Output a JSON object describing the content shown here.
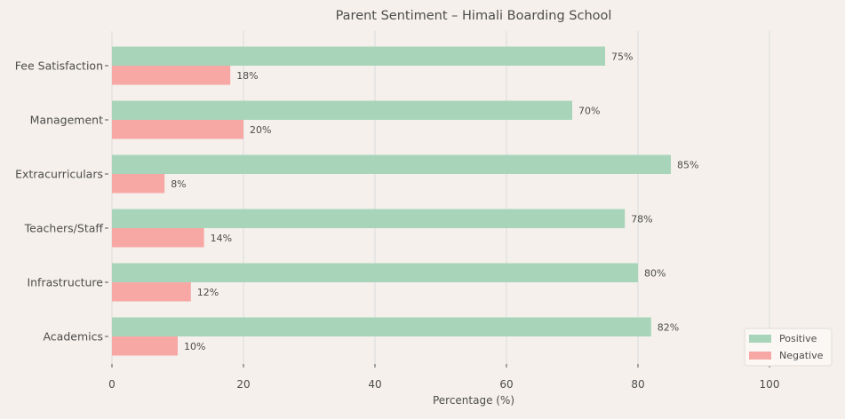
{
  "chart_data": {
    "type": "bar",
    "orientation": "horizontal",
    "title": "Parent Sentiment – Himali Boarding School",
    "xlabel": "Percentage (%)",
    "ylabel": "",
    "xlim": [
      0,
      110
    ],
    "xticks": [
      0,
      20,
      40,
      60,
      80,
      100
    ],
    "grid": "vertical",
    "legend_position": "lower-right",
    "categories": [
      "Academics",
      "Infrastructure",
      "Teachers/Staff",
      "Extracurriculars",
      "Management",
      "Fee Satisfaction"
    ],
    "series": [
      {
        "name": "Positive",
        "color": "#a8d5ba",
        "values": [
          82,
          80,
          78,
          85,
          70,
          75
        ],
        "labels": [
          "82%",
          "80%",
          "78%",
          "85%",
          "70%",
          "75%"
        ]
      },
      {
        "name": "Negative",
        "color": "#f7a8a4",
        "values": [
          10,
          12,
          14,
          8,
          20,
          18
        ],
        "labels": [
          "10%",
          "12%",
          "14%",
          "8%",
          "20%",
          "18%"
        ]
      }
    ]
  }
}
